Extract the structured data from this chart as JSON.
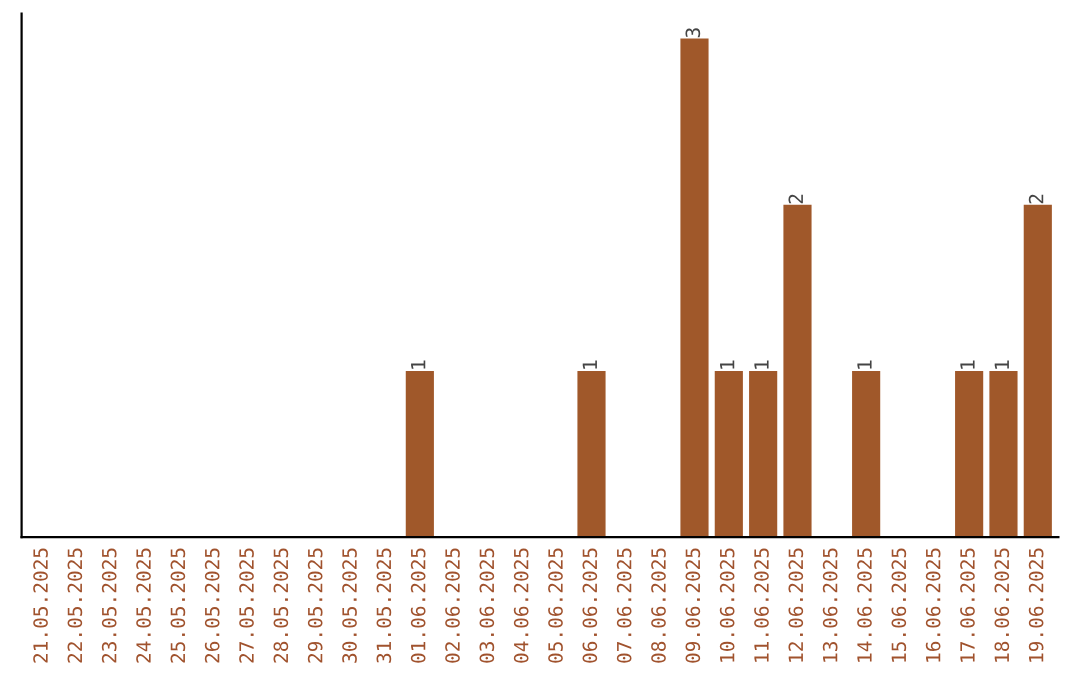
{
  "chart_data": {
    "type": "bar",
    "categories": [
      "21.05.2025",
      "22.05.2025",
      "23.05.2025",
      "24.05.2025",
      "25.05.2025",
      "26.05.2025",
      "27.05.2025",
      "28.05.2025",
      "29.05.2025",
      "30.05.2025",
      "31.05.2025",
      "01.06.2025",
      "02.06.2025",
      "03.06.2025",
      "04.06.2025",
      "05.06.2025",
      "06.06.2025",
      "07.06.2025",
      "08.06.2025",
      "09.06.2025",
      "10.06.2025",
      "11.06.2025",
      "12.06.2025",
      "13.06.2025",
      "14.06.2025",
      "15.06.2025",
      "16.06.2025",
      "17.06.2025",
      "18.06.2025",
      "19.06.2025"
    ],
    "values": [
      0,
      0,
      0,
      0,
      0,
      0,
      0,
      0,
      0,
      0,
      0,
      1,
      0,
      0,
      0,
      0,
      1,
      0,
      0,
      3,
      1,
      1,
      2,
      0,
      1,
      0,
      0,
      1,
      1,
      2
    ],
    "value_labels": [
      null,
      null,
      null,
      null,
      null,
      null,
      null,
      null,
      null,
      null,
      null,
      "1",
      null,
      null,
      null,
      null,
      "1",
      null,
      null,
      "3",
      "1",
      "1",
      "2",
      null,
      "1",
      null,
      null,
      "1",
      "1",
      "2"
    ],
    "color": "#a0582a",
    "tick_labels": "x",
    "grid": false
  }
}
